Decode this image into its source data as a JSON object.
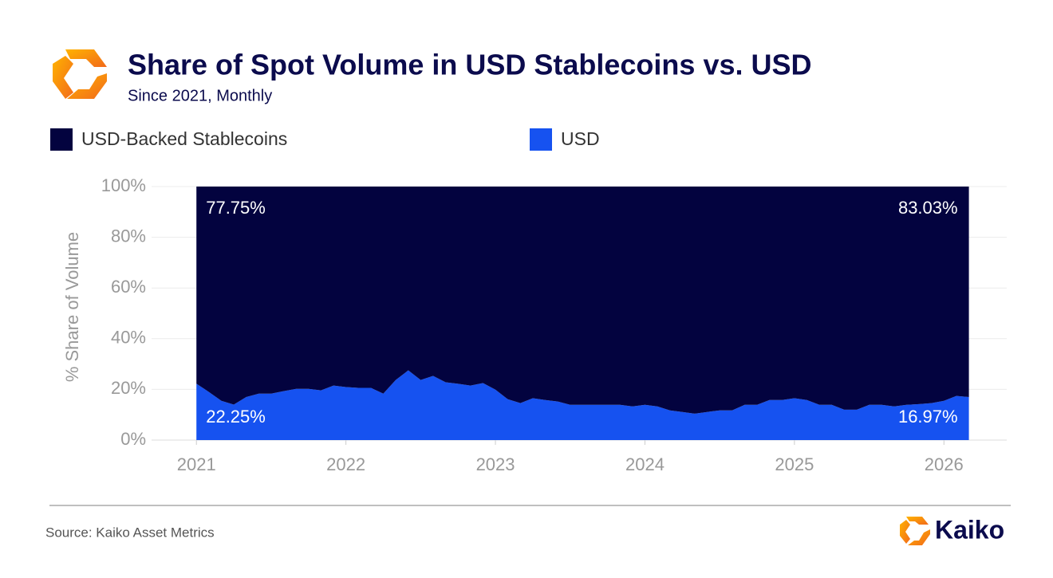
{
  "chart_data": {
    "type": "stacked_area",
    "title": "Share of Spot Volume in USD Stablecoins vs. USD",
    "subtitle": "Since 2021, Monthly",
    "y_label": "% Share of Volume",
    "source": "Source: Kaiko Asset Metrics",
    "brand": "Kaiko",
    "x": [
      2021,
      2021.083,
      2021.167,
      2021.25,
      2021.333,
      2021.417,
      2021.5,
      2021.583,
      2021.667,
      2021.75,
      2021.833,
      2021.917,
      2022,
      2022.083,
      2022.167,
      2022.25,
      2022.333,
      2022.417,
      2022.5,
      2022.583,
      2022.667,
      2022.75,
      2022.833,
      2022.917,
      2023,
      2023.083,
      2023.167,
      2023.25,
      2023.333,
      2023.417,
      2023.5,
      2023.583,
      2023.667,
      2023.75,
      2023.833,
      2023.917,
      2024,
      2024.083,
      2024.167,
      2024.25,
      2024.333,
      2024.417,
      2024.5,
      2024.583,
      2024.667,
      2024.75,
      2024.833,
      2024.917,
      2025,
      2025.083,
      2025.167,
      2025.25,
      2025.333,
      2025.417,
      2025.5,
      2025.583,
      2025.667,
      2025.75,
      2025.833,
      2025.917,
      2026,
      2026.083,
      2026.167
    ],
    "series": [
      {
        "name": "USD-Backed Stablecoins",
        "color": "#03033f",
        "values": [
          77.75,
          81,
          84.5,
          86,
          83,
          81.7,
          81.7,
          80.7,
          79.8,
          79.8,
          80.4,
          78.5,
          79.1,
          79.4,
          79.4,
          81.7,
          76.3,
          72.5,
          76.3,
          74.7,
          77.2,
          77.8,
          78.5,
          77.5,
          80.1,
          83.9,
          85.4,
          83.5,
          84.2,
          84.8,
          86.1,
          86.1,
          86.1,
          86.1,
          86.1,
          86.7,
          86.1,
          86.7,
          88.3,
          88.9,
          89.6,
          88.9,
          88.3,
          88.3,
          86.1,
          86.1,
          84.2,
          84.2,
          83.5,
          84.2,
          86.1,
          86.1,
          88,
          88,
          86.1,
          86.1,
          86.7,
          86.1,
          85.8,
          85.4,
          84.5,
          82.6,
          83.03
        ],
        "value_labels": [
          "77.75%",
          null,
          null,
          null,
          null,
          null,
          null,
          null,
          null,
          null,
          null,
          null,
          null,
          null,
          null,
          null,
          null,
          null,
          null,
          null,
          null,
          null,
          null,
          null,
          null,
          null,
          null,
          null,
          null,
          null,
          null,
          null,
          null,
          null,
          null,
          null,
          null,
          null,
          null,
          null,
          null,
          null,
          null,
          null,
          null,
          null,
          null,
          null,
          null,
          null,
          null,
          null,
          null,
          null,
          null,
          null,
          null,
          null,
          null,
          null,
          null,
          null,
          "83.03%"
        ]
      },
      {
        "name": "USD",
        "color": "#1652f0",
        "values": [
          22.25,
          19,
          15.5,
          14,
          17,
          18.3,
          18.3,
          19.3,
          20.2,
          20.2,
          19.6,
          21.5,
          20.9,
          20.6,
          20.6,
          18.3,
          23.7,
          27.5,
          23.7,
          25.3,
          22.8,
          22.2,
          21.5,
          22.5,
          19.9,
          16.1,
          14.6,
          16.5,
          15.8,
          15.2,
          13.9,
          13.9,
          13.9,
          13.9,
          13.9,
          13.3,
          13.9,
          13.3,
          11.7,
          11.1,
          10.4,
          11.1,
          11.7,
          11.7,
          13.9,
          13.9,
          15.8,
          15.8,
          16.5,
          15.8,
          13.9,
          13.9,
          12,
          12,
          13.9,
          13.9,
          13.3,
          13.9,
          14.2,
          14.6,
          15.5,
          17.4,
          16.97
        ],
        "value_labels": [
          "22.25%",
          null,
          null,
          null,
          null,
          null,
          null,
          null,
          null,
          null,
          null,
          null,
          null,
          null,
          null,
          null,
          null,
          null,
          null,
          null,
          null,
          null,
          null,
          null,
          null,
          null,
          null,
          null,
          null,
          null,
          null,
          null,
          null,
          null,
          null,
          null,
          null,
          null,
          null,
          null,
          null,
          null,
          null,
          null,
          null,
          null,
          null,
          null,
          null,
          null,
          null,
          null,
          null,
          null,
          null,
          null,
          null,
          null,
          null,
          null,
          null,
          null,
          "16.97%"
        ]
      }
    ],
    "xlim": [
      2020.7,
      2026.42
    ],
    "xticks": [
      2021,
      2022,
      2023,
      2024,
      2025,
      2026
    ],
    "ylim": [
      0,
      100
    ],
    "yticks": [
      {
        "value": 0,
        "label": "0%"
      },
      {
        "value": 20,
        "label": "20%"
      },
      {
        "value": 40,
        "label": "40%"
      },
      {
        "value": 60,
        "label": "60%"
      },
      {
        "value": 80,
        "label": "80%"
      },
      {
        "value": 100,
        "label": "100%"
      }
    ],
    "grid": true
  }
}
